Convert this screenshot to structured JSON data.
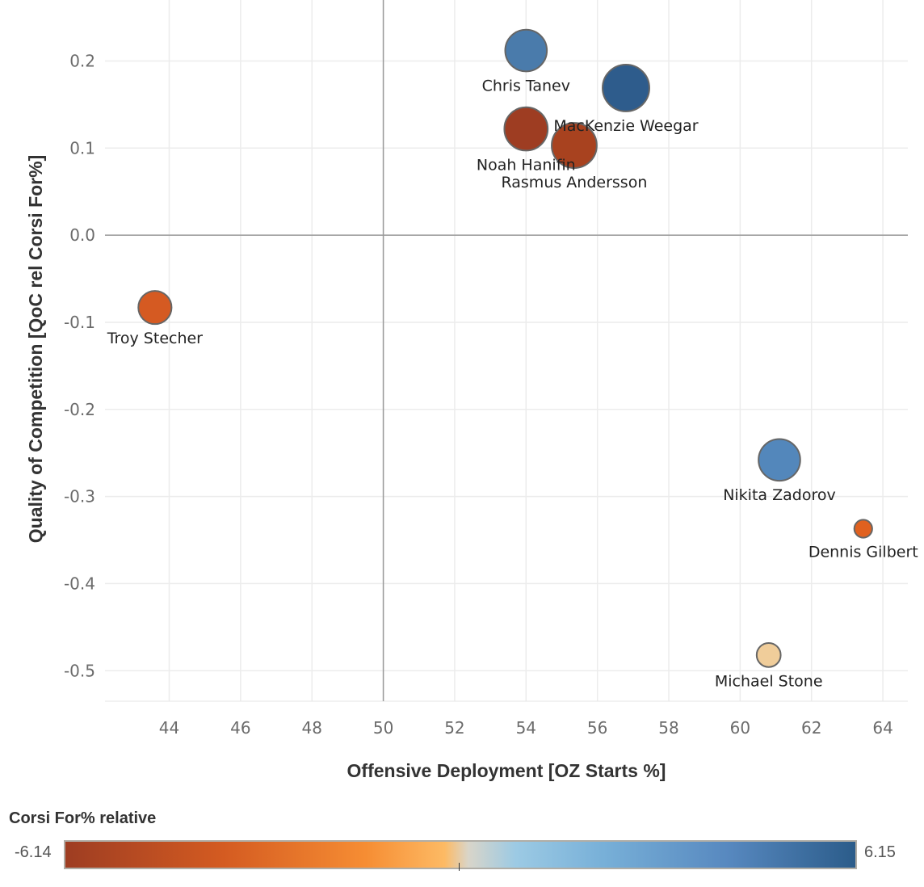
{
  "chart_data": {
    "type": "scatter",
    "title": "",
    "xlabel": "Offensive Deployment [OZ Starts %]",
    "ylabel": "Quality of Competition [QoC rel Corsi For%]",
    "xlim": [
      42.2,
      64.7
    ],
    "ylim": [
      -0.535,
      0.27
    ],
    "x_ticks": [
      44,
      46,
      48,
      50,
      52,
      54,
      56,
      58,
      60,
      62,
      64
    ],
    "x_tick_labels": [
      "44",
      "46",
      "48",
      "50",
      "52",
      "54",
      "56",
      "58",
      "60",
      "62",
      "64"
    ],
    "y_ticks": [
      0.2,
      0.1,
      0.0,
      -0.1,
      -0.2,
      -0.3,
      -0.4,
      -0.5
    ],
    "y_tick_labels": [
      "0.2",
      "0.1",
      "0.0",
      "-0.1",
      "-0.2",
      "-0.3",
      "-0.4",
      "-0.5"
    ],
    "reference_lines": {
      "x": 50,
      "y": 0.0
    },
    "grid": true,
    "size_encoding": "relative bubble size",
    "color_legend": {
      "title": "Corsi For% relative",
      "min": -6.14,
      "max": 6.15,
      "min_label": "-6.14",
      "max_label": "6.15",
      "placement": "bottom"
    },
    "points": [
      {
        "name": "Chris Tanev",
        "x": 54.0,
        "y": 0.212,
        "size": 0.8,
        "color_value": 3.8,
        "color": "#4a7bab"
      },
      {
        "name": "MacKenzie Weegar",
        "x": 56.8,
        "y": 0.169,
        "size": 0.95,
        "color_value": 6.15,
        "color": "#2e5c8c"
      },
      {
        "name": "Noah Hanifin",
        "x": 54.0,
        "y": 0.122,
        "size": 0.85,
        "color_value": -6.0,
        "color": "#9e3d22"
      },
      {
        "name": "Rasmus Andersson",
        "x": 55.35,
        "y": 0.103,
        "size": 0.9,
        "color_value": -5.5,
        "color": "#a8421f"
      },
      {
        "name": "Troy Stecher",
        "x": 43.6,
        "y": -0.083,
        "size": 0.55,
        "color_value": -3.8,
        "color": "#d55a22"
      },
      {
        "name": "Nikita Zadorov",
        "x": 61.1,
        "y": -0.258,
        "size": 0.8,
        "color_value": 3.4,
        "color": "#5387bb"
      },
      {
        "name": "Dennis Gilbert",
        "x": 63.45,
        "y": -0.337,
        "size": 0.1,
        "color_value": -3.5,
        "color": "#e0611f"
      },
      {
        "name": "Michael Stone",
        "x": 60.8,
        "y": -0.482,
        "size": 0.28,
        "color_value": -0.5,
        "color": "#f0cd9a"
      }
    ]
  }
}
